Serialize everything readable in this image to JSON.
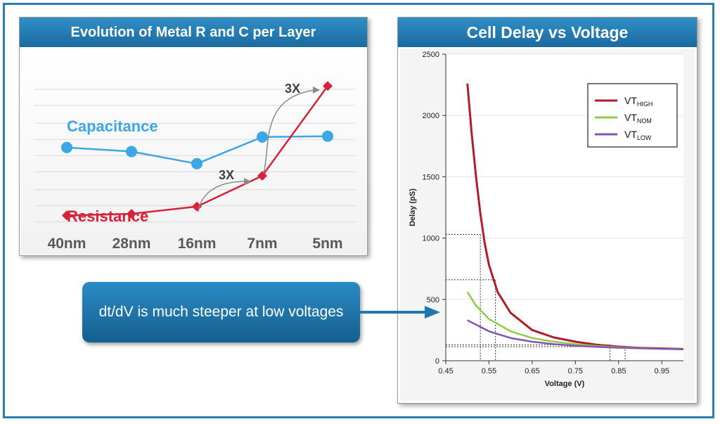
{
  "colors": {
    "frame": "#2a7fb0",
    "capacitance": "#3da6e6",
    "resistance": "#d8223c",
    "vt_high": "#b01c2c",
    "vt_nom": "#8fcc4e",
    "vt_low": "#7e55b3",
    "callout": "#1f77b0"
  },
  "callout": {
    "text": "dt/dV is much steeper at low voltages"
  },
  "chart_data": [
    {
      "type": "line",
      "title": "Evolution of Metal R and C per Layer",
      "categories": [
        "40nm",
        "28nm",
        "16nm",
        "7nm",
        "5nm"
      ],
      "series": [
        {
          "name": "Capacitance",
          "values": [
            5.4,
            5.15,
            4.4,
            6.05,
            6.1
          ]
        },
        {
          "name": "Resistance",
          "values": [
            1.2,
            1.3,
            1.75,
            3.65,
            9.2
          ]
        }
      ],
      "annotations": [
        "3X",
        "3X"
      ],
      "ylim": [
        0,
        10
      ],
      "grid": true,
      "xlabel": "",
      "ylabel": ""
    },
    {
      "type": "line",
      "title": "Cell Delay vs Voltage",
      "xlabel": "Voltage (V)",
      "ylabel": "Delay (pS)",
      "xlim": [
        0.45,
        1.0
      ],
      "ylim": [
        0,
        2500
      ],
      "xticks": [
        0.45,
        0.55,
        0.65,
        0.75,
        0.85,
        0.95
      ],
      "yticks": [
        0,
        500,
        1000,
        1500,
        2000,
        2500
      ],
      "grid": true,
      "legend": "top-right",
      "series": [
        {
          "name": "VT",
          "sub": "HIGH",
          "x": [
            0.5,
            0.51,
            0.52,
            0.53,
            0.54,
            0.55,
            0.57,
            0.6,
            0.65,
            0.7,
            0.75,
            0.8,
            0.85,
            0.9,
            0.95,
            1.0
          ],
          "y": [
            2260,
            1850,
            1500,
            1200,
            960,
            780,
            560,
            390,
            250,
            190,
            155,
            130,
            115,
            105,
            100,
            95
          ]
        },
        {
          "name": "VT",
          "sub": "NOM",
          "x": [
            0.5,
            0.52,
            0.55,
            0.6,
            0.65,
            0.7,
            0.75,
            0.8,
            0.85,
            0.9,
            0.95,
            1.0
          ],
          "y": [
            560,
            450,
            340,
            240,
            185,
            155,
            135,
            120,
            110,
            103,
            98,
            95
          ]
        },
        {
          "name": "VT",
          "sub": "LOW",
          "x": [
            0.5,
            0.55,
            0.6,
            0.65,
            0.7,
            0.75,
            0.8,
            0.85,
            0.9,
            0.95,
            1.0
          ],
          "y": [
            330,
            240,
            185,
            155,
            135,
            122,
            113,
            106,
            101,
            97,
            94
          ]
        }
      ],
      "reference_lines": [
        {
          "x": 0.53,
          "y": 1030
        },
        {
          "x": 0.565,
          "y": 660
        },
        {
          "x": 0.83,
          "y": 130
        },
        {
          "x": 0.865,
          "y": 115
        }
      ]
    }
  ]
}
